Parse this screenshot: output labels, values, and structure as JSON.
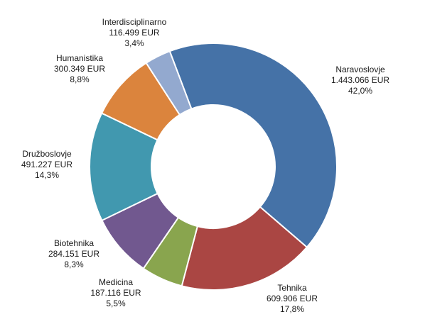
{
  "chart_data": {
    "type": "pie",
    "donut": true,
    "start_angle_deg": -20.6,
    "direction": "clockwise",
    "legend": "none",
    "slices": [
      {
        "category": "Naravoslovje",
        "amount": "1.443.066 EUR",
        "value": 1443066,
        "percent": 42.0,
        "percent_label": "42,0%",
        "color": "#4572A7"
      },
      {
        "category": "Tehnika",
        "amount": "609.906 EUR",
        "value": 609906,
        "percent": 17.8,
        "percent_label": "17,8%",
        "color": "#AA4643"
      },
      {
        "category": "Medicina",
        "amount": "187.116 EUR",
        "value": 187116,
        "percent": 5.5,
        "percent_label": "5,5%",
        "color": "#89A54E"
      },
      {
        "category": "Biotehnika",
        "amount": "284.151 EUR",
        "value": 284151,
        "percent": 8.3,
        "percent_label": "8,3%",
        "color": "#71588F"
      },
      {
        "category": "Družboslovje",
        "amount": "491.227 EUR",
        "value": 491227,
        "percent": 14.3,
        "percent_label": "14,3%",
        "color": "#4198AF"
      },
      {
        "category": "Humanistika",
        "amount": "300.349 EUR",
        "value": 300349,
        "percent": 8.8,
        "percent_label": "8,8%",
        "color": "#DB843D"
      },
      {
        "category": "Interdisciplinarno",
        "amount": "116.499 EUR",
        "value": 116499,
        "percent": 3.4,
        "percent_label": "3,4%",
        "color": "#93A9CF"
      }
    ]
  }
}
